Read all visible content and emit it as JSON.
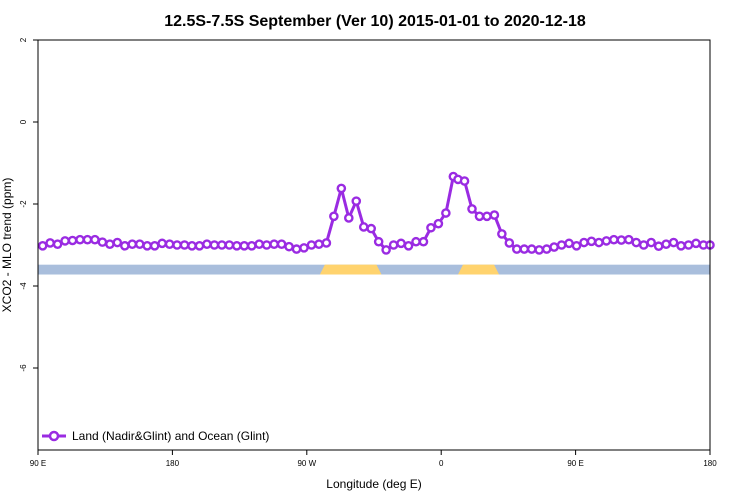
{
  "chart_data": {
    "type": "line",
    "title": "12.5S-7.5S September (Ver 10)   2015-01-01 to 2020-12-18",
    "xlabel": "Longitude (deg E)",
    "ylabel": "XCO2 - MLO trend (ppm)",
    "xlim": [
      90,
      450
    ],
    "ylim": [
      -8,
      2
    ],
    "x_ticks": [
      {
        "value": 90,
        "label": "90 E"
      },
      {
        "value": 162,
        "label": "180"
      },
      {
        "value": 234,
        "label": "90 W"
      },
      {
        "value": 306,
        "label": "0"
      },
      {
        "value": 378,
        "label": "90 E"
      },
      {
        "value": 450,
        "label": "180"
      }
    ],
    "y_ticks": [
      {
        "value": 2,
        "label": "2"
      },
      {
        "value": 0,
        "label": "0"
      },
      {
        "value": -2,
        "label": "-2"
      },
      {
        "value": -4,
        "label": "-4"
      },
      {
        "value": -6,
        "label": "-6"
      }
    ],
    "legend": {
      "position": "bottom-left",
      "label": "Land (Nadir&Glint) and Ocean (Glint)"
    },
    "series": [
      {
        "color": "#9a2be2",
        "x": [
          92.5,
          96.5,
          100.5,
          104.5,
          108.5,
          112.5,
          116.5,
          120.5,
          124.5,
          128.5,
          132.5,
          136.5,
          140.5,
          144.5,
          148.5,
          152.5,
          156.5,
          160.5,
          164.5,
          168.5,
          172.5,
          176.5,
          180.5,
          184.5,
          188.5,
          192.5,
          196.5,
          200.5,
          204.5,
          208.5,
          212.5,
          216.5,
          220.5,
          224.5,
          228.5,
          232.5,
          236.5,
          240.5,
          244.5,
          248.5,
          252.5,
          256.5,
          260.5,
          264.5,
          268.5,
          272.5,
          276.5,
          280.5,
          284.5,
          288.5,
          292.5,
          296.5,
          300.5,
          304.5,
          308.5,
          312.5,
          315,
          318.5,
          322.5,
          326.5,
          330.5,
          334.5,
          338.5,
          342.5,
          346.5,
          350.5,
          354.5,
          358.5,
          362.5,
          366.5,
          370.5,
          374.5,
          378.5,
          382.5,
          386.5,
          390.5,
          394.5,
          398.5,
          402.5,
          406.5,
          410.5,
          414.5,
          418.5,
          422.5,
          426.5,
          430.5,
          434.5,
          438.5,
          442.5,
          446.5,
          450
        ],
        "values": [
          -3.02,
          -2.95,
          -2.98,
          -2.9,
          -2.89,
          -2.87,
          -2.87,
          -2.87,
          -2.93,
          -2.98,
          -2.94,
          -3.02,
          -2.98,
          -2.98,
          -3.02,
          -3.02,
          -2.96,
          -2.98,
          -3.0,
          -3.0,
          -3.02,
          -3.02,
          -2.98,
          -3.0,
          -3.0,
          -3.0,
          -3.02,
          -3.02,
          -3.02,
          -2.98,
          -3.0,
          -2.98,
          -2.98,
          -3.04,
          -3.1,
          -3.07,
          -3.0,
          -2.98,
          -2.95,
          -2.3,
          -1.62,
          -2.34,
          -1.93,
          -2.56,
          -2.6,
          -2.92,
          -3.12,
          -3.0,
          -2.96,
          -3.02,
          -2.92,
          -2.92,
          -2.58,
          -2.48,
          -2.22,
          -1.33,
          -1.4,
          -1.44,
          -2.12,
          -2.3,
          -2.3,
          -2.27,
          -2.73,
          -2.95,
          -3.1,
          -3.1,
          -3.1,
          -3.12,
          -3.1,
          -3.05,
          -3.0,
          -2.96,
          -3.02,
          -2.94,
          -2.91,
          -2.94,
          -2.9,
          -2.87,
          -2.88,
          -2.87,
          -2.94,
          -3.0,
          -2.94,
          -3.03,
          -2.98,
          -2.94,
          -3.02,
          -3.0,
          -2.96,
          -3.0,
          -3.0
        ]
      }
    ],
    "land_bar": {
      "y_range": [
        -3.72,
        -3.48
      ],
      "ocean_color": "#a9bedc",
      "land_color": "#ffd36e",
      "land_segments": [
        [
          241,
          274
        ],
        [
          315,
          337
        ]
      ]
    },
    "grid": false
  }
}
